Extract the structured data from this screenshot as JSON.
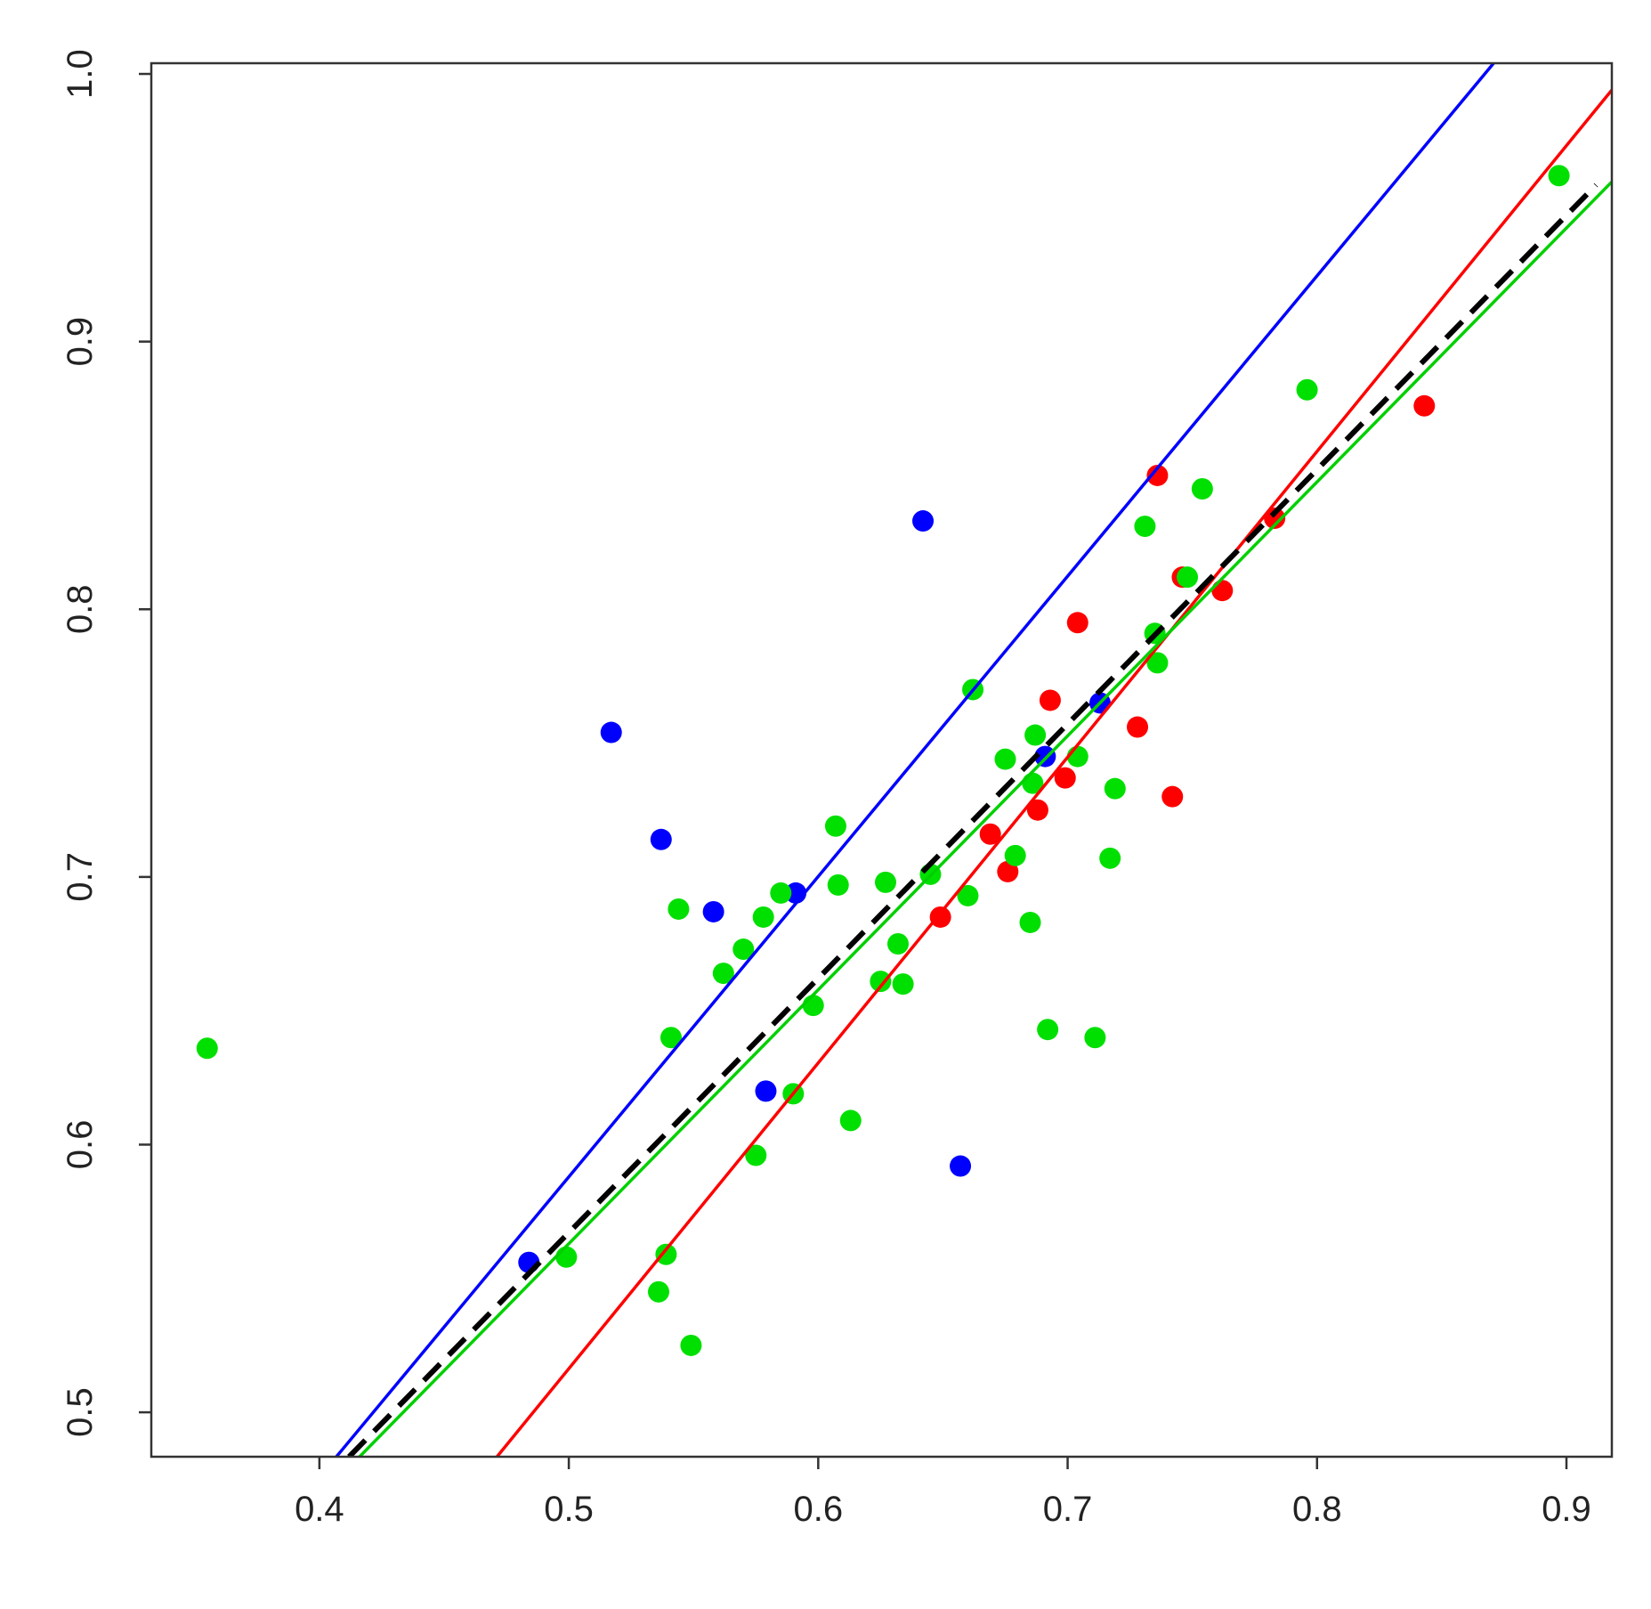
{
  "chart_data": {
    "type": "scatter",
    "xlim": [
      0.3326,
      0.9182
    ],
    "ylim": [
      0.4834,
      1.004
    ],
    "xticks": [
      0.4,
      0.5,
      0.6,
      0.7,
      0.8,
      0.9
    ],
    "yticks": [
      0.5,
      0.6,
      0.7,
      0.8,
      0.9,
      {
        "value": 1,
        "label": "1.0"
      }
    ],
    "series": [
      {
        "color": "#0000ff",
        "x": [
          0.484,
          0.517,
          0.537,
          0.558,
          0.591,
          0.579,
          0.642,
          0.657,
          0.691,
          0.713
        ],
        "values": [
          0.556,
          0.754,
          0.714,
          0.687,
          0.694,
          0.62,
          0.833,
          0.592,
          0.745,
          0.765
        ]
      },
      {
        "color": "#ff0000",
        "x": [
          0.736,
          0.843,
          0.783,
          0.746,
          0.762,
          0.704,
          0.693,
          0.728,
          0.699,
          0.742,
          0.688,
          0.669,
          0.676,
          0.649
        ],
        "values": [
          0.85,
          0.876,
          0.834,
          0.812,
          0.807,
          0.795,
          0.766,
          0.756,
          0.737,
          0.73,
          0.725,
          0.716,
          0.702,
          0.685
        ]
      },
      {
        "color": "#00e000",
        "x": [
          0.355,
          0.499,
          0.539,
          0.536,
          0.549,
          0.541,
          0.544,
          0.562,
          0.57,
          0.578,
          0.585,
          0.575,
          0.59,
          0.598,
          0.607,
          0.608,
          0.613,
          0.625,
          0.627,
          0.632,
          0.634,
          0.645,
          0.66,
          0.662,
          0.675,
          0.679,
          0.685,
          0.686,
          0.687,
          0.692,
          0.704,
          0.711,
          0.717,
          0.719,
          0.731,
          0.735,
          0.736,
          0.748,
          0.754,
          0.796,
          0.897
        ],
        "values": [
          0.636,
          0.558,
          0.559,
          0.545,
          0.525,
          0.64,
          0.688,
          0.664,
          0.673,
          0.685,
          0.694,
          0.596,
          0.619,
          0.652,
          0.719,
          0.697,
          0.609,
          0.661,
          0.698,
          0.675,
          0.66,
          0.701,
          0.693,
          0.77,
          0.744,
          0.708,
          0.683,
          0.735,
          0.753,
          0.643,
          0.745,
          0.64,
          0.707,
          0.733,
          0.831,
          0.791,
          0.78,
          0.812,
          0.845,
          0.882,
          0.962
        ]
      }
    ],
    "lines": [
      {
        "color": "#0000ff",
        "dashed": false,
        "x": [
          0.4068,
          0.8708
        ],
        "values": [
          0.4834,
          1.004
        ]
      },
      {
        "color": "#ff0000",
        "dashed": false,
        "x": [
          0.4712,
          0.9182
        ],
        "values": [
          0.4834,
          0.994
        ]
      },
      {
        "color": "#00d000",
        "dashed": false,
        "x": [
          0.4161,
          0.9182
        ],
        "values": [
          0.4834,
          0.9597
        ]
      },
      {
        "color": "#000000",
        "dashed": true,
        "x": [
          0.4119,
          0.9119
        ],
        "values": [
          0.4834,
          0.9585
        ]
      }
    ]
  }
}
